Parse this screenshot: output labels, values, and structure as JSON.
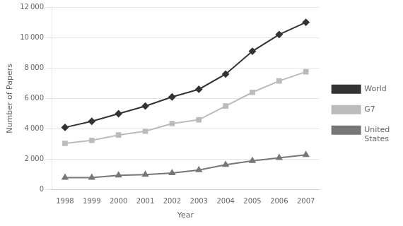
{
  "chart_data": {
    "type": "line",
    "xlabel": "Year",
    "ylabel": "Number of Papers",
    "x": [
      1998,
      1999,
      2000,
      2001,
      2002,
      2003,
      2004,
      2005,
      2006,
      2007
    ],
    "series": [
      {
        "name": "World",
        "color": "#333333",
        "marker": "diamond",
        "values": [
          4100,
          4500,
          5000,
          5500,
          6100,
          6600,
          7600,
          9100,
          10200,
          11000
        ]
      },
      {
        "name": "G7",
        "color": "#bbbbbb",
        "marker": "square",
        "values": [
          3050,
          3250,
          3600,
          3850,
          4350,
          4600,
          5500,
          6400,
          7150,
          7750
        ]
      },
      {
        "name": "United\nStates",
        "color": "#777777",
        "marker": "triangle",
        "values": [
          800,
          800,
          950,
          1000,
          1100,
          1300,
          1650,
          1900,
          2100,
          2300
        ]
      }
    ],
    "xlim": [
      1997.5,
      2007.5
    ],
    "xticks": [
      1998,
      1999,
      2000,
      2001,
      2002,
      2003,
      2004,
      2005,
      2006,
      2007
    ],
    "ylim": [
      0,
      12000
    ],
    "yticks": [
      0,
      {
        "value": 2000,
        "label": "2 000"
      },
      {
        "value": 4000,
        "label": "4 000"
      },
      {
        "value": 6000,
        "label": "6 000"
      },
      {
        "value": 8000,
        "label": "8 000"
      },
      {
        "value": 10000,
        "label": "10 000"
      },
      {
        "value": 12000,
        "label": "12 000"
      }
    ],
    "grid": "y",
    "legend": "right"
  }
}
